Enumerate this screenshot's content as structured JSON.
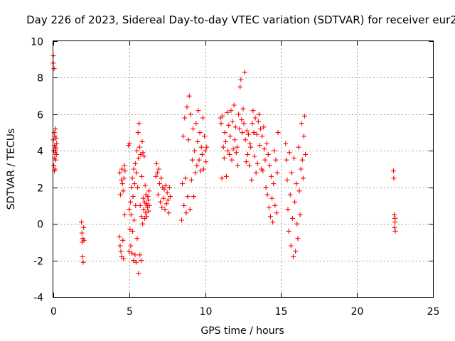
{
  "chart_data": {
    "type": "scatter",
    "title": "Day 226 of 2023, Sidereal Day-to-day VTEC variation (SDTVAR) for receiver eur2",
    "xlabel": "GPS time / hours",
    "ylabel": "SDTVAR / TECUs",
    "xlim": [
      0,
      25
    ],
    "ylim": [
      -4,
      10
    ],
    "x_ticks": [
      0,
      5,
      10,
      15,
      20,
      25
    ],
    "y_ticks": [
      -4,
      -2,
      0,
      2,
      4,
      6,
      8,
      10
    ],
    "x_tick_labels": [
      "0",
      "5",
      "10",
      "15",
      "20",
      "25"
    ],
    "y_tick_labels": [
      "-4",
      "-2",
      "0",
      "2",
      "4",
      "6",
      "8",
      "10"
    ],
    "grid": true,
    "legend": "none",
    "marker": "plus",
    "color": "#ff0000",
    "series": [
      {
        "x": [
          0.0,
          0.0,
          0.0,
          0.02,
          0.03,
          0.05,
          0.06,
          0.07,
          0.08,
          0.08,
          0.1,
          0.12,
          0.12,
          0.13,
          0.15,
          0.16,
          0.17,
          0.18,
          0.2,
          0.22,
          1.85,
          1.88,
          1.9,
          1.92,
          1.95,
          1.97,
          2.0,
          2.02,
          4.35,
          4.38,
          4.4,
          4.42,
          4.45,
          4.48,
          4.5,
          4.52,
          4.55,
          4.58,
          4.6,
          4.62,
          4.65,
          4.68,
          4.7,
          4.72,
          4.95,
          4.98,
          5.0,
          5.02,
          5.05,
          5.08,
          5.1,
          5.12,
          5.15,
          5.18,
          5.2,
          5.22,
          5.25,
          5.28,
          5.3,
          5.32,
          5.35,
          5.38,
          5.4,
          5.42,
          5.45,
          5.48,
          5.5,
          5.52,
          5.55,
          5.58,
          5.6,
          5.62,
          5.65,
          5.68,
          5.7,
          5.72,
          5.75,
          5.78,
          5.8,
          5.82,
          5.85,
          5.88,
          5.9,
          5.92,
          5.95,
          5.98,
          6.0,
          6.02,
          6.05,
          6.08,
          6.1,
          6.12,
          6.15,
          6.18,
          6.2,
          6.22,
          6.25,
          6.28,
          6.3,
          6.32,
          6.75,
          6.8,
          6.85,
          6.9,
          6.95,
          7.0,
          7.05,
          7.1,
          7.15,
          7.2,
          7.25,
          7.3,
          7.35,
          7.4,
          7.45,
          7.5,
          7.55,
          7.6,
          7.65,
          7.7,
          8.45,
          8.5,
          8.55,
          8.6,
          8.65,
          8.7,
          8.75,
          8.8,
          8.85,
          8.9,
          8.95,
          9.0,
          9.05,
          9.1,
          9.15,
          9.2,
          9.25,
          9.3,
          9.35,
          9.4,
          9.45,
          9.5,
          9.55,
          9.6,
          9.65,
          9.7,
          9.75,
          9.8,
          9.85,
          9.9,
          9.95,
          10.0,
          10.05,
          10.1,
          11.0,
          11.05,
          11.1,
          11.15,
          11.2,
          11.25,
          11.3,
          11.35,
          11.4,
          11.45,
          11.5,
          11.55,
          11.6,
          11.65,
          11.7,
          11.75,
          11.8,
          11.85,
          11.9,
          11.95,
          12.0,
          12.05,
          12.1,
          12.15,
          12.2,
          12.25,
          12.3,
          12.35,
          12.4,
          12.45,
          12.5,
          12.55,
          12.6,
          12.65,
          12.7,
          12.75,
          12.8,
          12.85,
          12.9,
          12.95,
          13.0,
          13.05,
          13.1,
          13.15,
          13.2,
          13.25,
          13.3,
          13.35,
          13.4,
          13.45,
          13.5,
          13.55,
          13.6,
          13.65,
          13.7,
          13.75,
          13.8,
          13.85,
          13.9,
          13.95,
          14.0,
          14.05,
          14.1,
          14.15,
          14.2,
          14.25,
          14.3,
          14.35,
          14.4,
          14.45,
          14.5,
          14.55,
          14.6,
          14.65,
          14.7,
          14.75,
          14.8,
          15.3,
          15.35,
          15.4,
          15.45,
          15.5,
          15.55,
          15.6,
          15.65,
          15.7,
          15.75,
          15.8,
          15.85,
          15.9,
          15.95,
          16.0,
          16.05,
          16.1,
          16.15,
          16.2,
          16.25,
          16.3,
          16.35,
          16.4,
          16.45,
          16.5,
          16.55,
          16.6,
          22.4,
          22.42,
          22.45,
          22.47,
          22.5,
          22.5,
          22.52
        ],
        "y": [
          9.2,
          8.8,
          4.6,
          4.0,
          3.2,
          8.5,
          5.0,
          2.9,
          4.3,
          3.6,
          4.8,
          3.9,
          3.0,
          4.2,
          5.2,
          3.5,
          4.1,
          4.7,
          3.8,
          4.4,
          0.1,
          -0.5,
          -1.0,
          -1.8,
          -0.8,
          -2.1,
          -0.2,
          -0.9,
          -0.7,
          2.8,
          -1.2,
          1.6,
          -1.5,
          2.4,
          -1.8,
          3.0,
          2.2,
          -0.9,
          1.8,
          -1.9,
          2.5,
          3.2,
          0.5,
          2.9,
          4.3,
          -1.5,
          0.8,
          4.4,
          -0.3,
          1.2,
          -1.2,
          0.5,
          2.0,
          -1.6,
          2.5,
          -0.4,
          1.5,
          -2.0,
          3.0,
          0.2,
          2.2,
          -1.7,
          3.3,
          1.0,
          -2.1,
          2.8,
          4.0,
          -0.8,
          2.0,
          5.0,
          3.6,
          -2.7,
          5.5,
          4.2,
          -1.7,
          1.0,
          3.8,
          -2.0,
          0.4,
          2.6,
          4.5,
          0.0,
          3.9,
          1.4,
          0.8,
          3.7,
          1.2,
          0.3,
          2.1,
          0.6,
          1.6,
          1.1,
          0.4,
          1.0,
          0.9,
          1.5,
          1.3,
          0.7,
          1.8,
          1.0,
          2.6,
          3.3,
          2.8,
          1.6,
          3.0,
          2.2,
          1.2,
          2.5,
          0.9,
          2.0,
          1.4,
          1.9,
          0.8,
          2.1,
          1.1,
          1.7,
          1.3,
          0.6,
          2.0,
          1.5,
          0.2,
          2.2,
          4.8,
          1.0,
          5.8,
          2.5,
          0.6,
          6.4,
          1.5,
          4.6,
          7.0,
          0.8,
          6.0,
          2.4,
          3.5,
          5.2,
          1.5,
          4.0,
          2.8,
          5.5,
          3.2,
          4.5,
          6.2,
          3.5,
          5.0,
          2.9,
          4.2,
          3.8,
          5.8,
          3.0,
          4.8,
          4.0,
          3.4,
          4.2,
          5.8,
          5.5,
          2.5,
          5.9,
          4.2,
          3.6,
          5.0,
          4.5,
          2.6,
          6.1,
          4.0,
          5.4,
          3.8,
          4.8,
          6.2,
          3.5,
          5.6,
          4.1,
          6.5,
          4.6,
          5.3,
          3.9,
          4.2,
          3.2,
          6.0,
          5.2,
          7.5,
          7.9,
          5.7,
          5.0,
          6.3,
          5.5,
          8.3,
          4.6,
          3.4,
          5.1,
          3.8,
          4.9,
          3.2,
          4.4,
          4.2,
          2.4,
          5.5,
          6.2,
          5.0,
          3.7,
          5.8,
          2.8,
          4.9,
          3.3,
          5.6,
          6.0,
          4.3,
          5.2,
          3.0,
          4.8,
          2.9,
          5.3,
          4.1,
          3.5,
          2.0,
          4.4,
          1.6,
          3.8,
          0.9,
          3.2,
          0.4,
          2.6,
          1.4,
          0.1,
          2.2,
          4.0,
          1.0,
          3.5,
          0.6,
          2.8,
          5.0,
          4.4,
          3.5,
          2.4,
          0.8,
          -0.4,
          3.9,
          1.6,
          -1.2,
          2.8,
          0.3,
          -1.8,
          3.6,
          1.2,
          -1.5,
          2.2,
          0.0,
          -0.8,
          4.2,
          1.8,
          0.5,
          3.0,
          5.5,
          3.5,
          2.5,
          4.8,
          5.9,
          3.8,
          2.9,
          2.5,
          0.5,
          -0.2,
          0.3,
          0.1,
          -0.4
        ]
      }
    ]
  }
}
